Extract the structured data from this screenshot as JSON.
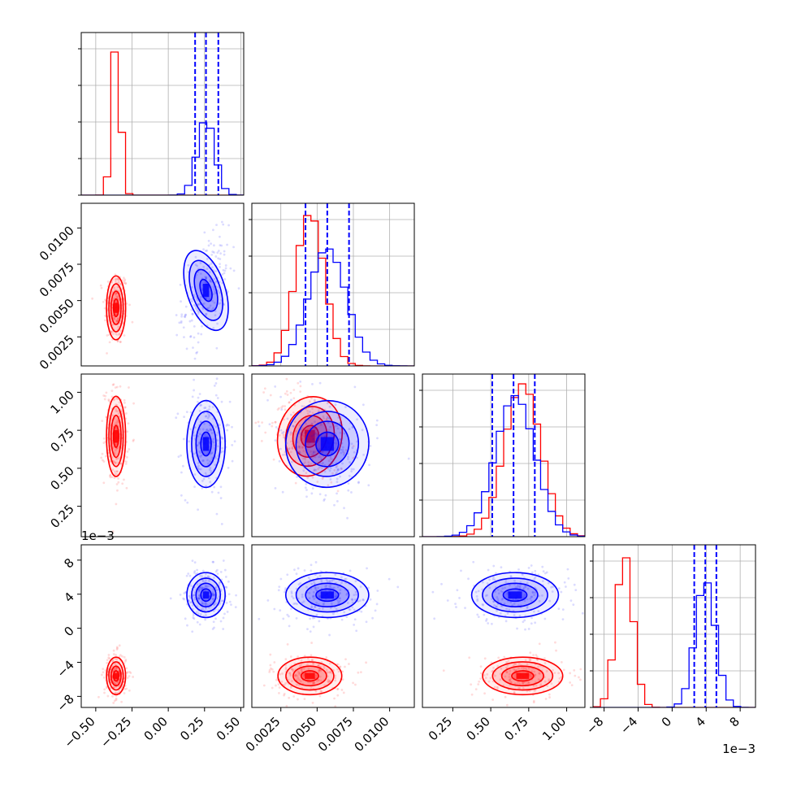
{
  "chart_data": {
    "type": "corner",
    "params": [
      {
        "range": [
          -0.6,
          0.52
        ],
        "ticks": [
          -0.5,
          -0.25,
          0.0,
          0.25,
          0.5
        ],
        "tick_labels": [
          "−0.50",
          "−0.25",
          "0.00",
          "0.25",
          "0.50"
        ]
      },
      {
        "range": [
          0.0005,
          0.0117
        ],
        "ticks": [
          0.0025,
          0.005,
          0.0075,
          0.01
        ],
        "tick_labels": [
          "0.0025",
          "0.0050",
          "0.0075",
          "0.0100"
        ]
      },
      {
        "range": [
          0.05,
          1.12
        ],
        "ticks": [
          0.25,
          0.5,
          0.75,
          1.0
        ],
        "tick_labels": [
          "0.25",
          "0.50",
          "0.75",
          "1.00"
        ]
      },
      {
        "range": [
          -9.3,
          9.8
        ],
        "ticks": [
          -8,
          -4,
          0,
          4,
          8
        ],
        "tick_labels": [
          "−8",
          "−4",
          "0",
          "4",
          "8"
        ],
        "offset_text": "1e−3"
      }
    ],
    "series": [
      {
        "color": "#ff0000",
        "means": [
          -0.36,
          0.0045,
          0.71,
          -5.6
        ],
        "sds": [
          0.03,
          0.001,
          0.12,
          1.0
        ],
        "corr": [
          [
            1,
            0,
            0,
            0
          ],
          [
            0,
            1,
            -0.3,
            0
          ],
          [
            0,
            -0.3,
            1,
            0
          ],
          [
            0,
            0,
            0,
            1
          ]
        ]
      },
      {
        "color": "#0000ff",
        "means": [
          0.26,
          0.0057,
          0.66,
          3.9
        ],
        "sds": [
          0.06,
          0.0013,
          0.13,
          1.2
        ],
        "corr": [
          [
            1,
            0.4,
            0,
            0
          ],
          [
            0.4,
            1,
            -0.3,
            0
          ],
          [
            0,
            -0.3,
            1,
            0
          ],
          [
            0,
            0,
            0,
            1
          ]
        ],
        "quantiles": [
          [
            0.185,
            0.26,
            0.345
          ],
          [
            0.0042,
            0.0057,
            0.0072
          ],
          [
            0.51,
            0.65,
            0.79
          ],
          [
            2.6,
            3.9,
            5.2
          ]
        ]
      }
    ],
    "grid": true
  }
}
